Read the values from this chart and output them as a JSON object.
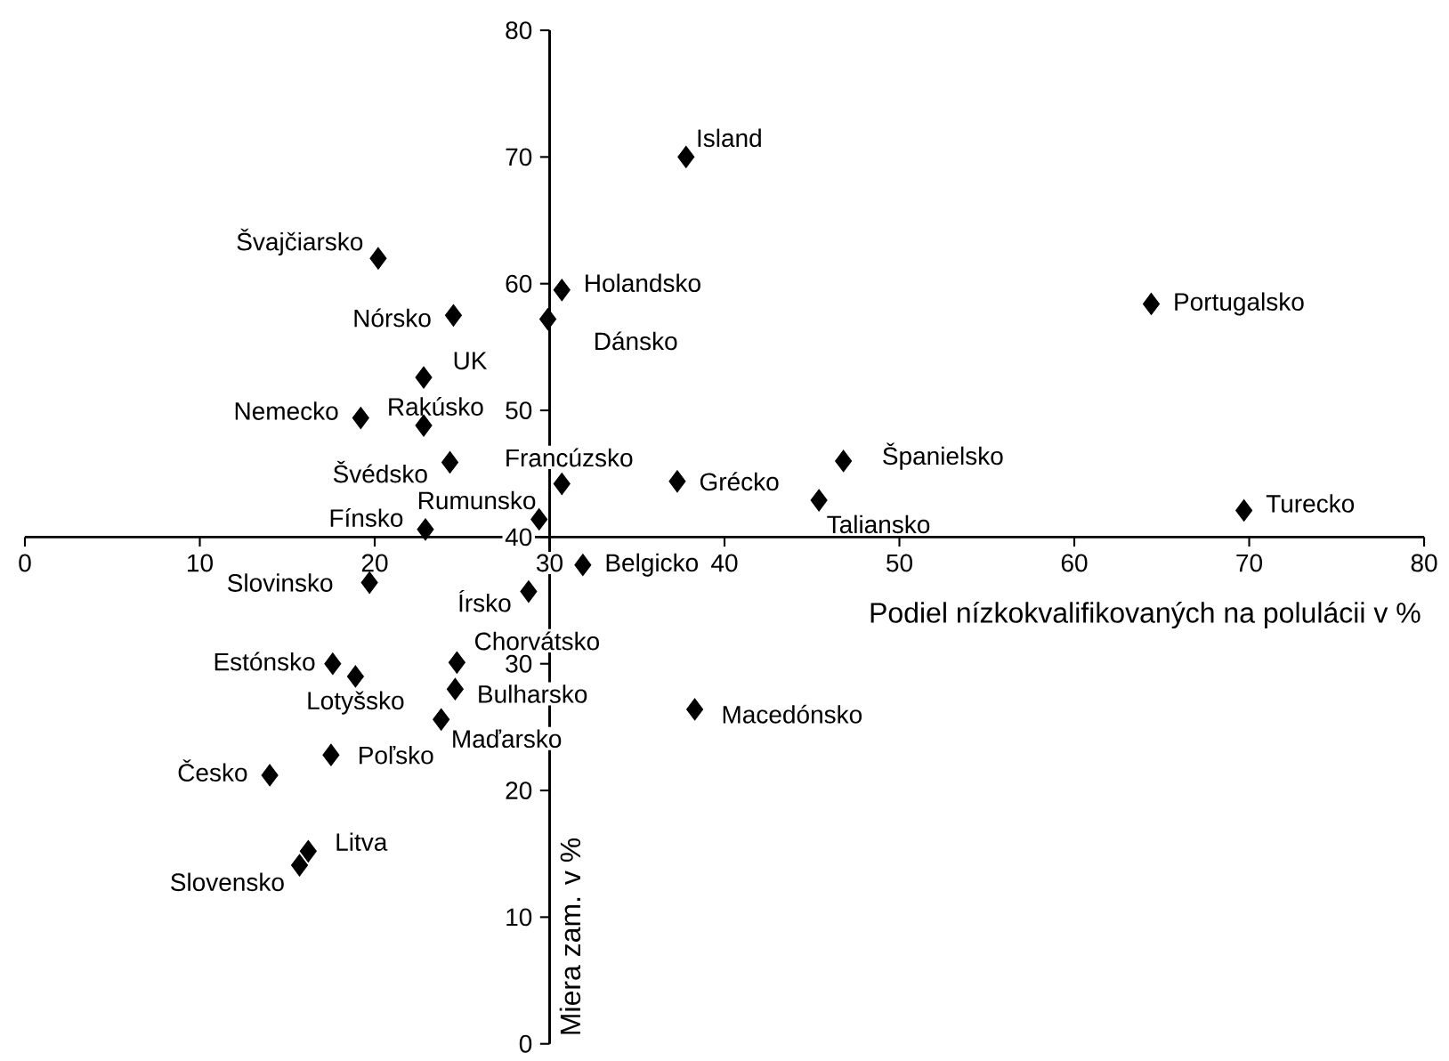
{
  "chart_data": {
    "type": "scatter",
    "xlabel": "Podiel nízkokvalifikovaných na polulácii v %",
    "ylabel": "Miera zam. v %",
    "x": [
      37.8,
      20.2,
      30.7,
      24.5,
      29.9,
      64.4,
      22.8,
      19.2,
      22.8,
      24.3,
      30.7,
      37.3,
      46.8,
      45.4,
      69.7,
      29.4,
      22.9,
      31.9,
      19.7,
      28.8,
      24.7,
      17.6,
      18.9,
      24.6,
      23.8,
      38.3,
      17.5,
      14.0,
      16.2,
      15.7
    ],
    "values": [
      70.0,
      62.0,
      59.5,
      57.5,
      57.2,
      58.4,
      52.6,
      49.4,
      48.8,
      45.9,
      44.2,
      44.4,
      46.0,
      42.9,
      42.1,
      41.4,
      40.6,
      37.8,
      36.4,
      35.7,
      30.1,
      30.0,
      29.0,
      28.0,
      25.6,
      26.4,
      22.8,
      21.2,
      15.2,
      14.1
    ],
    "color": "#000000",
    "marker": "diamond",
    "xlim": [
      0,
      80
    ],
    "ylim": [
      0,
      80
    ],
    "xticks": [
      0,
      10,
      20,
      30,
      40,
      50,
      60,
      70,
      80
    ],
    "yticks": [
      0,
      10,
      20,
      30,
      40,
      50,
      60,
      70,
      80
    ],
    "annotations": [
      {
        "text": "Island",
        "x": 37.8,
        "y": 70.0
      },
      {
        "text": "Švajčiarsko",
        "x": 20.2,
        "y": 62.0
      },
      {
        "text": "Holandsko",
        "x": 30.7,
        "y": 59.5
      },
      {
        "text": "Nórsko",
        "x": 24.5,
        "y": 57.5
      },
      {
        "text": "Dánsko",
        "x": 29.9,
        "y": 57.2
      },
      {
        "text": "Portugalsko",
        "x": 64.4,
        "y": 58.4
      },
      {
        "text": "UK",
        "x": 22.8,
        "y": 52.6
      },
      {
        "text": "Nemecko",
        "x": 19.2,
        "y": 49.4
      },
      {
        "text": "Rakúsko",
        "x": 22.8,
        "y": 48.8
      },
      {
        "text": "Švédsko",
        "x": 24.3,
        "y": 45.9
      },
      {
        "text": "Francúzsko",
        "x": 30.7,
        "y": 44.2
      },
      {
        "text": "Grécko",
        "x": 37.3,
        "y": 44.4
      },
      {
        "text": "Španielsko",
        "x": 46.8,
        "y": 46.0
      },
      {
        "text": "Taliansko",
        "x": 45.4,
        "y": 42.9
      },
      {
        "text": "Turecko",
        "x": 69.7,
        "y": 42.1
      },
      {
        "text": "Rumunsko",
        "x": 29.4,
        "y": 41.4
      },
      {
        "text": "Fínsko",
        "x": 22.9,
        "y": 40.6
      },
      {
        "text": "Belgicko",
        "x": 31.9,
        "y": 37.8
      },
      {
        "text": "Slovinsko",
        "x": 19.7,
        "y": 36.4
      },
      {
        "text": "Írsko",
        "x": 28.8,
        "y": 35.7
      },
      {
        "text": "Chorvátsko",
        "x": 24.7,
        "y": 30.1
      },
      {
        "text": "Estónsko",
        "x": 17.6,
        "y": 30.0
      },
      {
        "text": "Lotyšsko",
        "x": 18.9,
        "y": 29.0
      },
      {
        "text": "Bulharsko",
        "x": 24.6,
        "y": 28.0
      },
      {
        "text": "Maďarsko",
        "x": 23.8,
        "y": 25.6
      },
      {
        "text": "Macedónsko",
        "x": 38.3,
        "y": 26.4
      },
      {
        "text": "Poľsko",
        "x": 17.5,
        "y": 22.8
      },
      {
        "text": "Česko",
        "x": 14.0,
        "y": 21.2
      },
      {
        "text": "Litva",
        "x": 16.2,
        "y": 15.2
      },
      {
        "text": "Slovensko",
        "x": 15.7,
        "y": 14.1
      }
    ]
  }
}
